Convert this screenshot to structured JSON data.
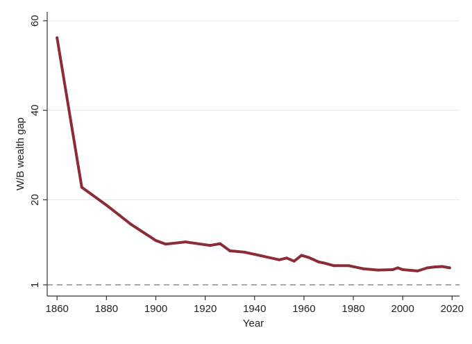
{
  "chart_data": {
    "type": "line",
    "title": "",
    "xlabel": "Year",
    "ylabel": "W/B wealth gap",
    "xlim": [
      1856,
      2023
    ],
    "ylim": [
      -1.5,
      62
    ],
    "x_ticks": [
      1860,
      1880,
      1900,
      1920,
      1940,
      1960,
      1980,
      2000,
      2020
    ],
    "y_ticks": [
      1,
      20,
      40,
      60
    ],
    "grid": true,
    "reference_line": {
      "y": 1,
      "style": "dashed",
      "color": "#8c8c8c"
    },
    "series": [
      {
        "color": "#8b2c36",
        "x": [
          1860,
          1870,
          1880,
          1890,
          1900,
          1904,
          1912,
          1922,
          1926,
          1930,
          1936,
          1950,
          1953,
          1956,
          1959,
          1962,
          1966,
          1968,
          1972,
          1978,
          1984,
          1990,
          1996,
          1998,
          2000,
          2006,
          2010,
          2013,
          2016,
          2019
        ],
        "y": [
          56.2,
          22.8,
          18.8,
          14.5,
          10.9,
          10.1,
          10.6,
          9.8,
          10.2,
          8.6,
          8.3,
          6.6,
          7.0,
          6.3,
          7.6,
          7.1,
          6.1,
          5.9,
          5.3,
          5.3,
          4.6,
          4.3,
          4.4,
          4.8,
          4.4,
          4.1,
          4.8,
          5.0,
          5.1,
          4.8
        ]
      }
    ]
  }
}
